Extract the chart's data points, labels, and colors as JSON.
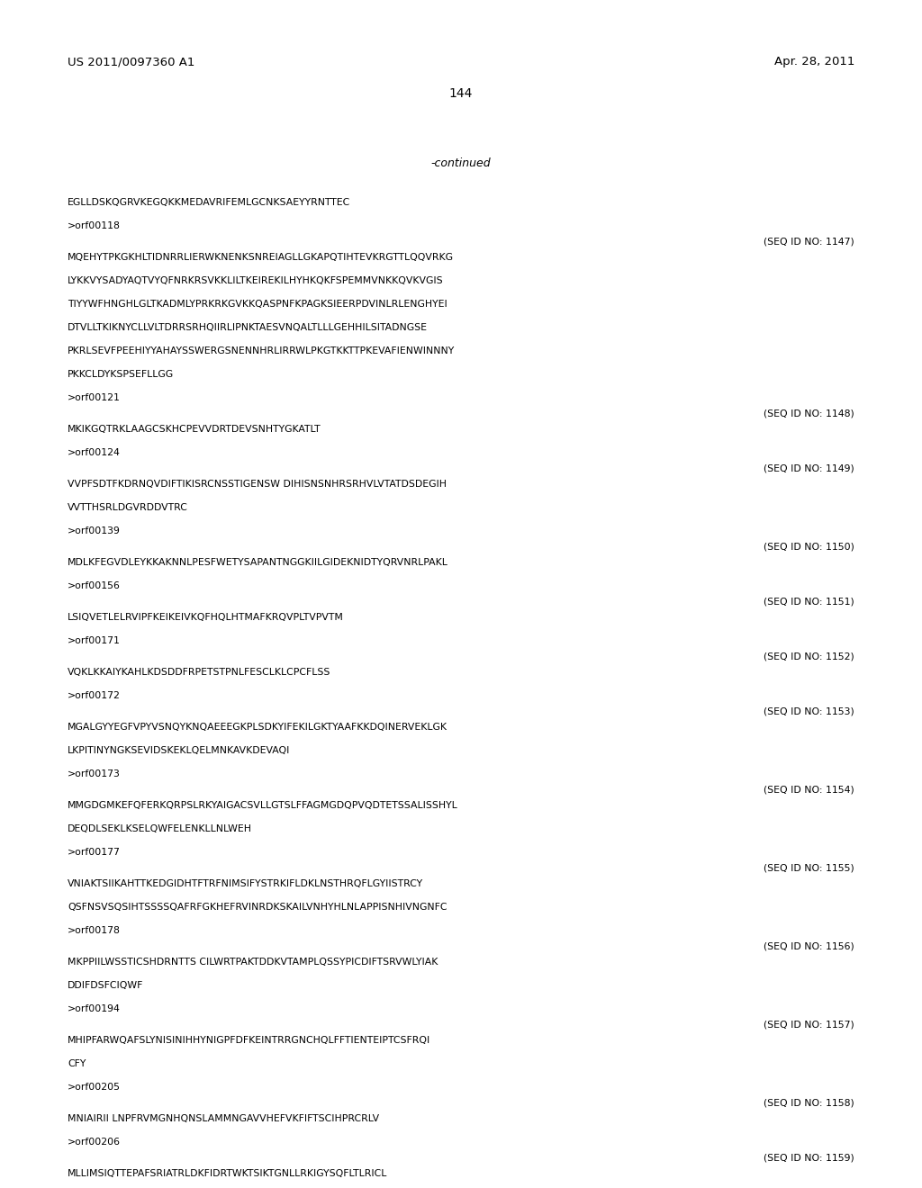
{
  "background_color": "#ffffff",
  "header_left": "US 2011/0097360 A1",
  "header_right": "Apr. 28, 2011",
  "page_number": "144",
  "continued_label": "-continued",
  "body_lines": [
    {
      "text": "EGLLDSKQGRVKEGQKKMEDAVRIFEMLGCNKSAEYYRNTTEC",
      "type": "seq"
    },
    {
      "text": "",
      "type": "blank"
    },
    {
      "text": ">orf00118",
      "type": "orf"
    },
    {
      "text": "(SEQ ID NO: 1147)",
      "type": "seqid"
    },
    {
      "text": "MQEHYTPKGKHLTIDNRRLIERWKNENKSNREIAGLLGKAPQTIHTEVKRGTTLQQVRKG",
      "type": "seq"
    },
    {
      "text": "",
      "type": "blank"
    },
    {
      "text": "LYKKVYSADYAQTVYQFNRKRSVKKLILTKEIREKILHYHKQKFSPEMMVNKKQVKVGIS",
      "type": "seq"
    },
    {
      "text": "",
      "type": "blank"
    },
    {
      "text": "TIYYWFHNGHLGLTKADMLYPRKRKGVKKQASPNFKPAGKSIEERPDVINLRLENGHYEI",
      "type": "seq"
    },
    {
      "text": "",
      "type": "blank"
    },
    {
      "text": "DTVLLTKIKNYCLLVLTDRRSRHQIIRLIPNKTAESVNQALTLLLGEHHILSITADNGSE",
      "type": "seq"
    },
    {
      "text": "",
      "type": "blank"
    },
    {
      "text": "PKRLSEVFPEEHIYYAHAYSSWERGSNENNHRLIRRWLPKGTKKTTPKEVAFIENWINNNY",
      "type": "seq"
    },
    {
      "text": "",
      "type": "blank"
    },
    {
      "text": "PKKCLDYKSPSEFLLGG",
      "type": "seq"
    },
    {
      "text": "",
      "type": "blank"
    },
    {
      "text": ">orf00121",
      "type": "orf"
    },
    {
      "text": "(SEQ ID NO: 1148)",
      "type": "seqid"
    },
    {
      "text": "MKIKGQTRKLAAGCSKHCPEVVDRTDEVSNHTYGKATLT",
      "type": "seq"
    },
    {
      "text": "",
      "type": "blank"
    },
    {
      "text": ">orf00124",
      "type": "orf"
    },
    {
      "text": "(SEQ ID NO: 1149)",
      "type": "seqid"
    },
    {
      "text": "VVPFSDTFKDRNQVDIFTIKISRCNSSTIGENSW DIHISNSNHRSRHVLVTATDSDEGIH",
      "type": "seq"
    },
    {
      "text": "",
      "type": "blank"
    },
    {
      "text": "VVTTHSRLDGVRDDVTRC",
      "type": "seq"
    },
    {
      "text": "",
      "type": "blank"
    },
    {
      "text": ">orf00139",
      "type": "orf"
    },
    {
      "text": "(SEQ ID NO: 1150)",
      "type": "seqid"
    },
    {
      "text": "MDLKFEGVDLEYKKAKNNLPESFWETYSAPANTNGGKIILGIDEKNIDTYQRVNRLPAKL",
      "type": "seq"
    },
    {
      "text": "",
      "type": "blank"
    },
    {
      "text": ">orf00156",
      "type": "orf"
    },
    {
      "text": "(SEQ ID NO: 1151)",
      "type": "seqid"
    },
    {
      "text": "LSIQVETLELRVIPFKEIKEIVKQFHQLHTMAFKRQVPLTVPVTM",
      "type": "seq"
    },
    {
      "text": "",
      "type": "blank"
    },
    {
      "text": ">orf00171",
      "type": "orf"
    },
    {
      "text": "(SEQ ID NO: 1152)",
      "type": "seqid"
    },
    {
      "text": "VQKLKKAIYKAHLKDSDDFRPETSTPNLFESCLKLCPCFLSS",
      "type": "seq"
    },
    {
      "text": "",
      "type": "blank"
    },
    {
      "text": ">orf00172",
      "type": "orf"
    },
    {
      "text": "(SEQ ID NO: 1153)",
      "type": "seqid"
    },
    {
      "text": "MGALGYYEGFVPYVSNQYKNQAEEEGKPLSDKYIFEKILGKTYAAFKKDQINERVEKLGK",
      "type": "seq"
    },
    {
      "text": "",
      "type": "blank"
    },
    {
      "text": "LKPITINYNGKSEVIDSKEKLQELMNKAVKDEVAQI",
      "type": "seq"
    },
    {
      "text": "",
      "type": "blank"
    },
    {
      "text": ">orf00173",
      "type": "orf"
    },
    {
      "text": "(SEQ ID NO: 1154)",
      "type": "seqid"
    },
    {
      "text": "MMGDGMKEFQFERKQRPSLRKYAIGACSVLLGTSLFFAGMGDQPVQDTETSSALISSHYL",
      "type": "seq"
    },
    {
      "text": "",
      "type": "blank"
    },
    {
      "text": "DEQDLSEKLKSELQWFELENKLLNLWEH",
      "type": "seq"
    },
    {
      "text": "",
      "type": "blank"
    },
    {
      "text": ">orf00177",
      "type": "orf"
    },
    {
      "text": "(SEQ ID NO: 1155)",
      "type": "seqid"
    },
    {
      "text": "VNIAKTSIIKAHTTKEDGIDHTFTRFNIMSIFYSTRKIFLDKLNSTHRQFLGYIISTRCY",
      "type": "seq"
    },
    {
      "text": "",
      "type": "blank"
    },
    {
      "text": "QSFNSVSQSIHTSSSSQAFRFGKHEFRVINRDKSKAILVNHYHLNLAPPISNHIVNGNFC",
      "type": "seq"
    },
    {
      "text": "",
      "type": "blank"
    },
    {
      "text": ">orf00178",
      "type": "orf"
    },
    {
      "text": "(SEQ ID NO: 1156)",
      "type": "seqid"
    },
    {
      "text": "MKPPIILWSSTICSHDRNTTS CILWRTPAKTDDKVTAMPLQSSYPICDIFTSRVWLYIAK",
      "type": "seq"
    },
    {
      "text": "",
      "type": "blank"
    },
    {
      "text": "DDIFDSFCIQWF",
      "type": "seq"
    },
    {
      "text": "",
      "type": "blank"
    },
    {
      "text": ">orf00194",
      "type": "orf"
    },
    {
      "text": "(SEQ ID NO: 1157)",
      "type": "seqid"
    },
    {
      "text": "MHIPFARWQAFSLYNISINIHHYNIGPFDFKEINTRRGNCHQLFFTIENTEIPTCSFRQI",
      "type": "seq"
    },
    {
      "text": "",
      "type": "blank"
    },
    {
      "text": "CFY",
      "type": "seq"
    },
    {
      "text": "",
      "type": "blank"
    },
    {
      "text": ">orf00205",
      "type": "orf"
    },
    {
      "text": "(SEQ ID NO: 1158)",
      "type": "seqid"
    },
    {
      "text": "MNIAIRII LNPFRVMGNHQNSLAMMNGAVVHEFVKFIFTSCIHPRCRLV",
      "type": "seq"
    },
    {
      "text": "",
      "type": "blank"
    },
    {
      "text": ">orf00206",
      "type": "orf"
    },
    {
      "text": "(SEQ ID NO: 1159)",
      "type": "seqid"
    },
    {
      "text": "MLLIMSIQTTEPAFSRIATRLDKFIDRTWKTSIKTGNLLRKIGYSQFLTLRICL",
      "type": "seq"
    }
  ],
  "font_size_header": 9.5,
  "font_size_body": 7.8,
  "font_size_page": 10.0,
  "font_size_continued": 9.0
}
